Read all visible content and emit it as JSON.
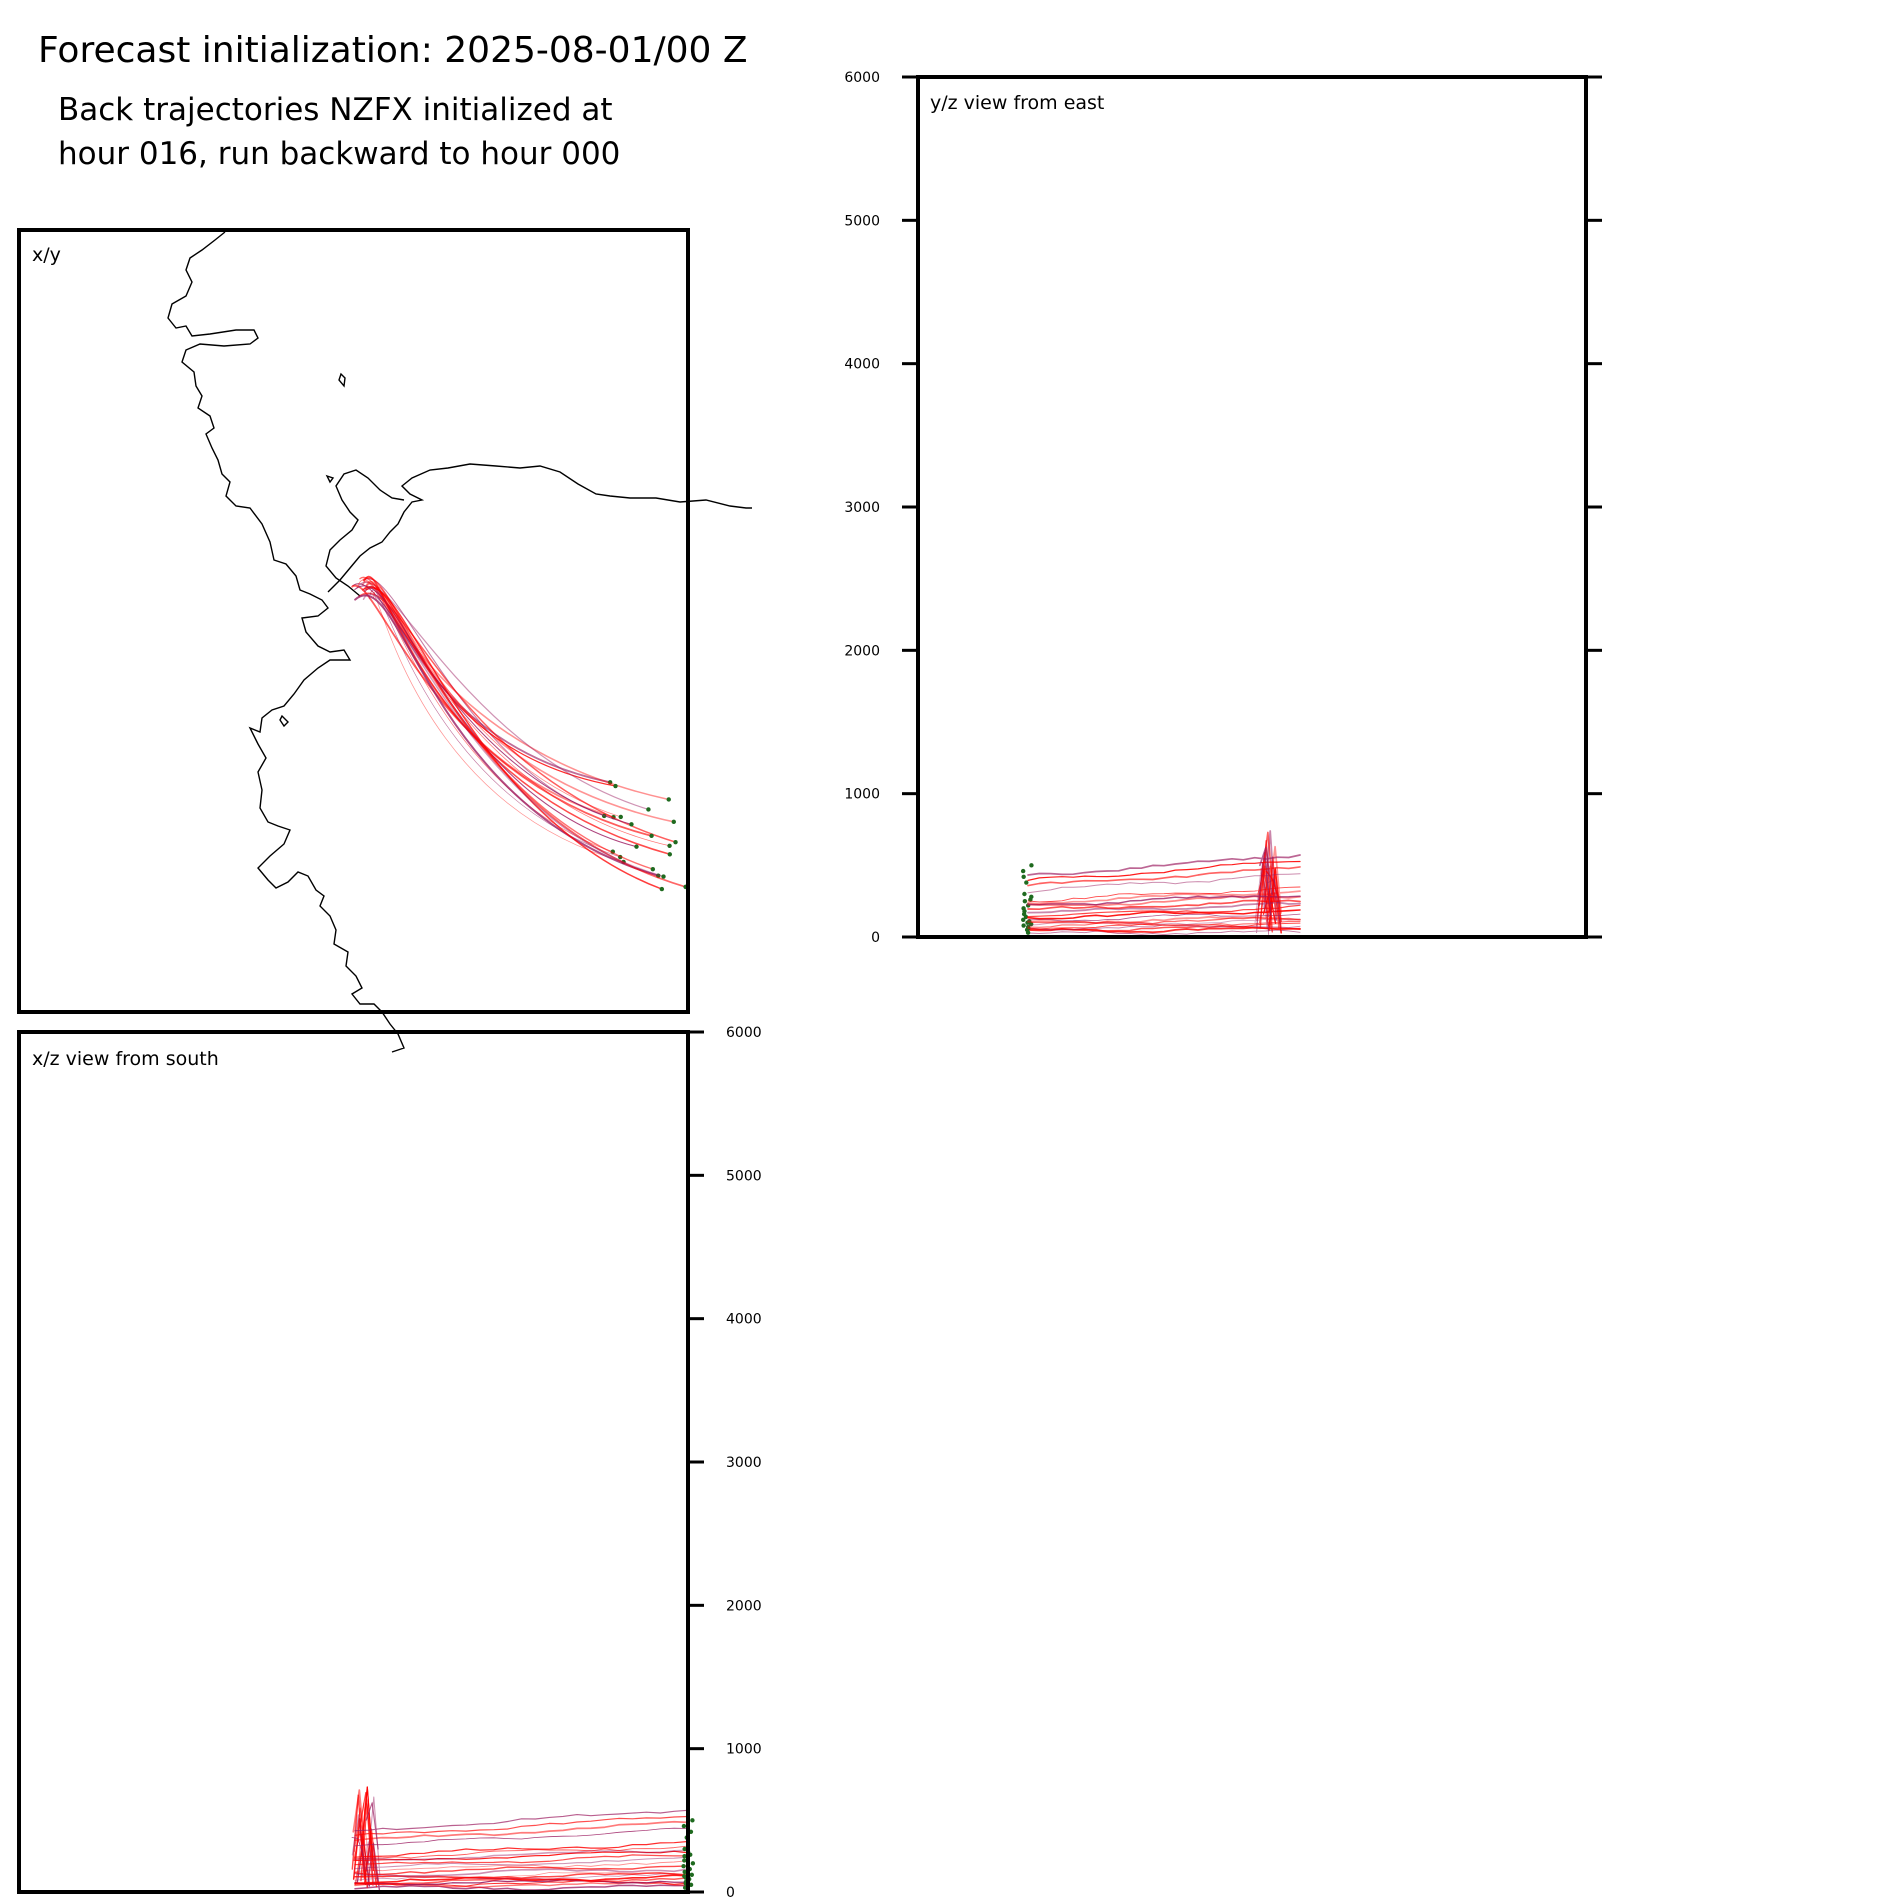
{
  "header": {
    "title": "Forecast initialization: 2025-08-01/00 Z",
    "subtitle_line1": "Back trajectories NZFX initialized at",
    "subtitle_line2": "hour 016, run backward to hour 000"
  },
  "colors": {
    "trajectory_start": "#ff0000",
    "trajectory_end": "#9b1b60",
    "endpoint": "#1f6a1f",
    "coastline": "#000000"
  },
  "panels": {
    "xy": {
      "label": "x/y"
    },
    "yz": {
      "label": "y/z view from east"
    },
    "xz": {
      "label": "x/z view from south"
    }
  },
  "chart_data": [
    {
      "type": "line",
      "panel": "x/y",
      "title": "x/y",
      "x_range": [
        0,
        1
      ],
      "y_range": [
        0,
        1
      ],
      "series_count": 22,
      "grid": false
    },
    {
      "type": "line",
      "panel": "y/z view from east",
      "title": "y/z view from east",
      "ylim": [
        0,
        6000
      ],
      "yticks": [
        "0",
        "1000",
        "2000",
        "3000",
        "4000",
        "5000",
        "6000"
      ],
      "tick_side": "left and right",
      "grid": false
    },
    {
      "type": "line",
      "panel": "x/z view from south",
      "title": "x/z view from south",
      "ylim": [
        0,
        6000
      ],
      "yticks": [
        "0",
        "1000",
        "2000",
        "3000",
        "4000",
        "5000",
        "6000"
      ],
      "tick_side": "right",
      "grid": false
    }
  ]
}
